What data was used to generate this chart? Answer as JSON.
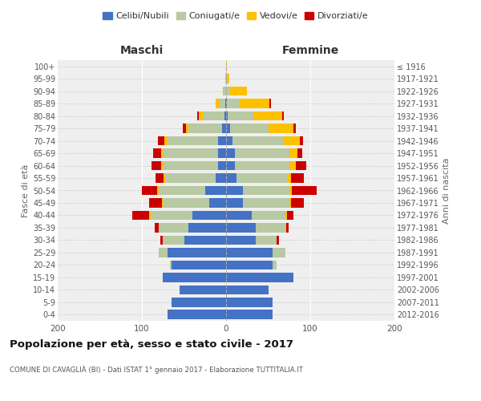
{
  "age_groups": [
    "0-4",
    "5-9",
    "10-14",
    "15-19",
    "20-24",
    "25-29",
    "30-34",
    "35-39",
    "40-44",
    "45-49",
    "50-54",
    "55-59",
    "60-64",
    "65-69",
    "70-74",
    "75-79",
    "80-84",
    "85-89",
    "90-94",
    "95-99",
    "100+"
  ],
  "birth_years": [
    "2012-2016",
    "2007-2011",
    "2002-2006",
    "1997-2001",
    "1992-1996",
    "1987-1991",
    "1982-1986",
    "1977-1981",
    "1972-1976",
    "1967-1971",
    "1962-1966",
    "1957-1961",
    "1952-1956",
    "1947-1951",
    "1942-1946",
    "1937-1941",
    "1932-1936",
    "1927-1931",
    "1922-1926",
    "1917-1921",
    "≤ 1916"
  ],
  "maschi": {
    "celibi": [
      70,
      65,
      55,
      75,
      65,
      70,
      50,
      45,
      40,
      20,
      25,
      12,
      10,
      10,
      10,
      5,
      2,
      1,
      0,
      0,
      0
    ],
    "coniugati": [
      0,
      0,
      0,
      0,
      2,
      10,
      25,
      35,
      50,
      55,
      55,
      60,
      65,
      65,
      60,
      40,
      25,
      8,
      3,
      1,
      0
    ],
    "vedovi": [
      0,
      0,
      0,
      0,
      0,
      0,
      0,
      0,
      1,
      1,
      2,
      2,
      2,
      2,
      3,
      3,
      5,
      3,
      1,
      0,
      0
    ],
    "divorziati": [
      0,
      0,
      0,
      0,
      0,
      0,
      3,
      5,
      20,
      15,
      18,
      10,
      12,
      10,
      8,
      3,
      2,
      0,
      0,
      0,
      0
    ]
  },
  "femmine": {
    "nubili": [
      55,
      55,
      50,
      80,
      55,
      55,
      35,
      35,
      30,
      20,
      20,
      12,
      10,
      10,
      8,
      5,
      2,
      1,
      0,
      0,
      0
    ],
    "coniugate": [
      0,
      0,
      0,
      0,
      5,
      15,
      25,
      35,
      40,
      55,
      55,
      60,
      65,
      65,
      60,
      45,
      30,
      15,
      5,
      1,
      0
    ],
    "vedove": [
      0,
      0,
      0,
      0,
      0,
      0,
      0,
      1,
      2,
      2,
      3,
      5,
      8,
      10,
      20,
      30,
      35,
      35,
      20,
      3,
      1
    ],
    "divorziate": [
      0,
      0,
      0,
      0,
      0,
      0,
      3,
      3,
      8,
      15,
      30,
      15,
      12,
      5,
      3,
      3,
      2,
      2,
      0,
      0,
      0
    ]
  },
  "colors": {
    "celibi_nubili": "#4472c4",
    "coniugati": "#b8c9a3",
    "vedovi": "#ffc000",
    "divorziati": "#cc0000"
  },
  "title": "Popolazione per età, sesso e stato civile - 2017",
  "subtitle": "COMUNE DI CAVAGLIÀ (BI) - Dati ISTAT 1° gennaio 2017 - Elaborazione TUTTITALIA.IT",
  "ylabel_left": "Fasce di età",
  "ylabel_right": "Anni di nascita",
  "xlabel_left": "Maschi",
  "xlabel_right": "Femmine",
  "xlim": 200,
  "legend_labels": [
    "Celibi/Nubili",
    "Coniugati/e",
    "Vedovi/e",
    "Divorziati/e"
  ],
  "background_color": "#ffffff",
  "plot_bg_color": "#efefef"
}
